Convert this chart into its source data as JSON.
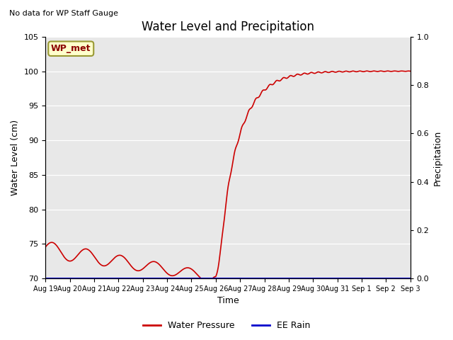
{
  "title": "Water Level and Precipitation",
  "top_left_text": "No data for WP Staff Gauge",
  "ylabel_left": "Water Level (cm)",
  "ylabel_right": "Precipitation",
  "xlabel": "Time",
  "ylim_left": [
    70,
    105
  ],
  "ylim_right": [
    0.0,
    1.0
  ],
  "yticks_left": [
    70,
    75,
    80,
    85,
    90,
    95,
    100,
    105
  ],
  "yticks_right": [
    0.0,
    0.2,
    0.4,
    0.6,
    0.8,
    1.0
  ],
  "xtick_labels": [
    "Aug 19",
    "Aug 20",
    "Aug 21",
    "Aug 22",
    "Aug 23",
    "Aug 24",
    "Aug 25",
    "Aug 26",
    "Aug 27",
    "Aug 28",
    "Aug 29",
    "Aug 30",
    "Aug 31",
    "Sep 1",
    "Sep 2",
    "Sep 3"
  ],
  "legend_entries": [
    "Water Pressure",
    "EE Rain"
  ],
  "legend_colors": [
    "#cc0000",
    "#0000cc"
  ],
  "water_level_color": "#cc0000",
  "rain_color": "#0000cc",
  "bg_color": "#e8e8e8",
  "box_label": "WP_met",
  "box_bg": "#ffffcc",
  "box_border": "#999933"
}
